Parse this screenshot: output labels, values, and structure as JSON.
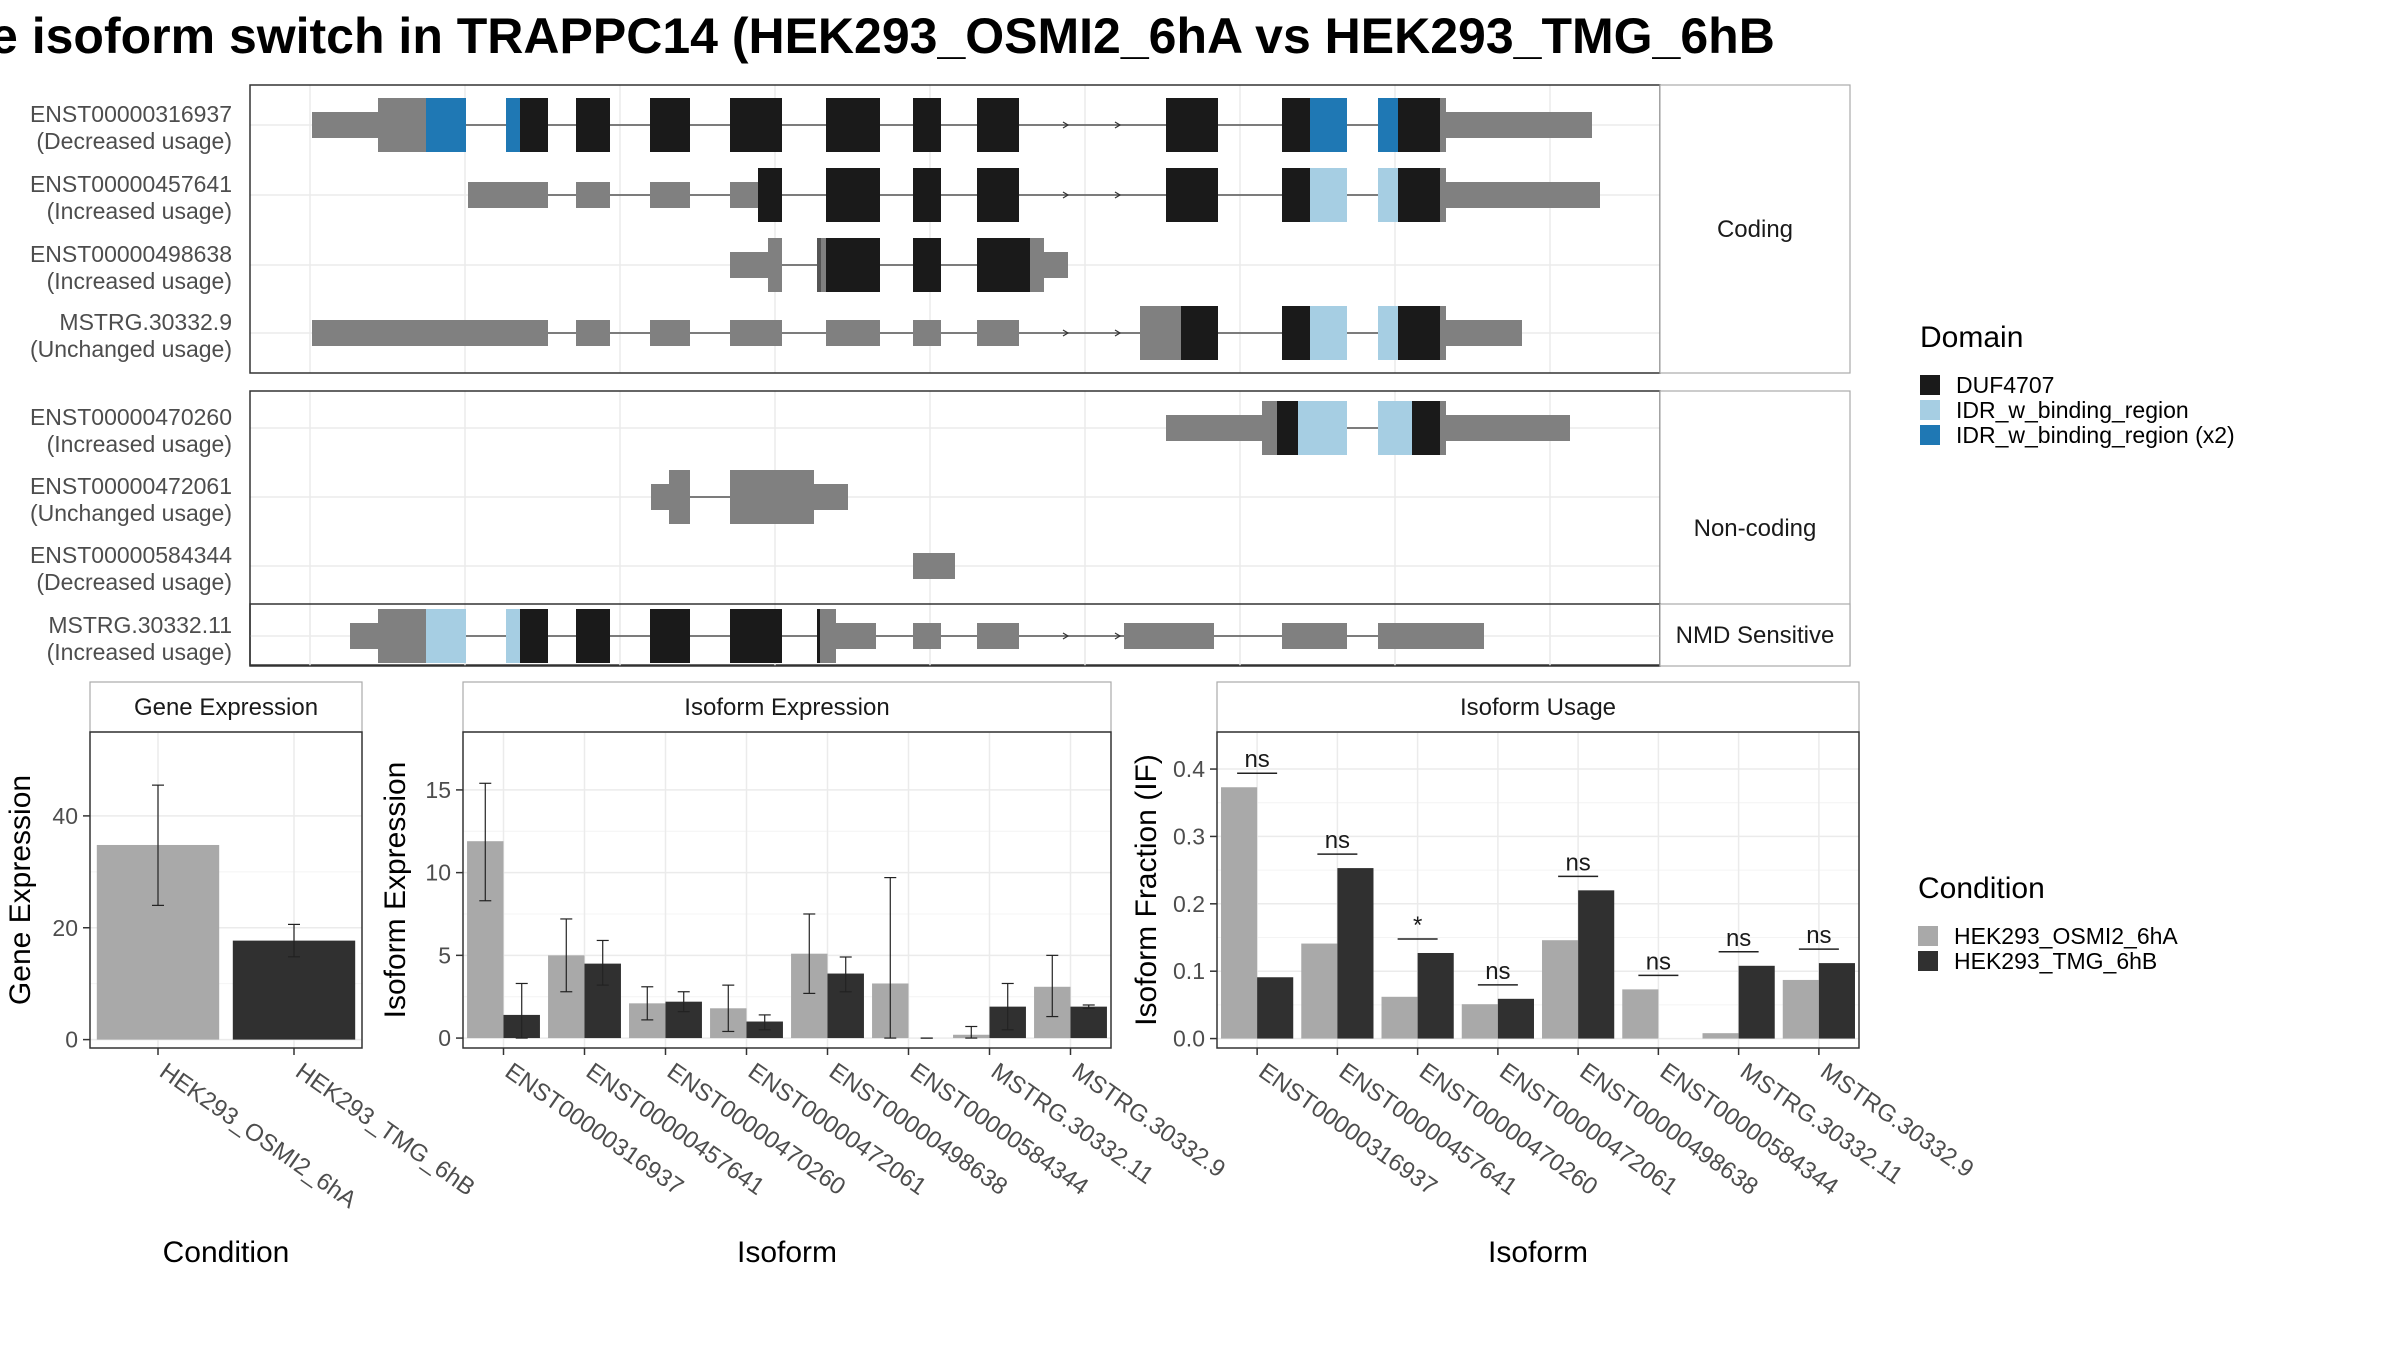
{
  "title": "e isoform switch in TRAPPC14 (HEK293_OSMI2_6hA vs HEK293_TMG_6hB",
  "colors": {
    "duf": "#1a1a1a",
    "idr": "#a6cee3",
    "idr2": "#1f78b4",
    "utr": "#808080",
    "cond_a": "#a9a9a9",
    "cond_b": "#303030",
    "panel_border": "#333333",
    "strip_border": "#aaaaaa",
    "grid": "#ebebeb"
  },
  "legend_domain": {
    "title": "Domain",
    "items": [
      {
        "label": "DUF4707",
        "color_key": "duf"
      },
      {
        "label": "IDR_w_binding_region",
        "color_key": "idr"
      },
      {
        "label": "IDR_w_binding_region (x2)",
        "color_key": "idr2"
      }
    ]
  },
  "legend_condition": {
    "title": "Condition",
    "items": [
      {
        "label": "HEK293_OSMI2_6hA",
        "color_key": "cond_a"
      },
      {
        "label": "HEK293_TMG_6hB",
        "color_key": "cond_b"
      }
    ]
  },
  "transcripts": {
    "groups": [
      {
        "strip": "Coding",
        "tracks": [
          {
            "id": "ENST00000316937",
            "usage": "(Decreased usage)"
          },
          {
            "id": "ENST00000457641",
            "usage": "(Increased usage)"
          },
          {
            "id": "ENST00000498638",
            "usage": "(Increased usage)"
          },
          {
            "id": "MSTRG.30332.9",
            "usage": "(Unchanged usage)"
          }
        ]
      },
      {
        "strip": "Non-coding",
        "tracks": [
          {
            "id": "ENST00000470260",
            "usage": "(Increased usage)"
          },
          {
            "id": "ENST00000472061",
            "usage": "(Unchanged usage)"
          },
          {
            "id": "ENST00000584344",
            "usage": "(Decreased usage)"
          }
        ]
      },
      {
        "strip": "NMD Sensitive",
        "tracks": [
          {
            "id": "MSTRG.30332.11",
            "usage": "(Increased usage)"
          }
        ]
      }
    ]
  },
  "chart_data": [
    {
      "type": "bar",
      "title": "Gene Expression",
      "xlabel": "Condition",
      "ylabel": "Gene Expression",
      "categories": [
        "HEK293_OSMI2_6hA",
        "HEK293_TMG_6hB"
      ],
      "values": [
        34.8,
        17.7
      ],
      "error_low": [
        24.0,
        14.8
      ],
      "error_high": [
        45.5,
        20.6
      ],
      "ylim": [
        -1.5,
        55
      ],
      "yticks": [
        0,
        20,
        40
      ]
    },
    {
      "type": "bar",
      "title": "Isoform Expression",
      "xlabel": "Isoform",
      "ylabel": "Isoform Expression",
      "categories": [
        "ENST00000316937",
        "ENST00000457641",
        "ENST00000470260",
        "ENST00000472061",
        "ENST00000498638",
        "ENST00000584344",
        "MSTRG.30332.11",
        "MSTRG.30332.9"
      ],
      "series": [
        {
          "name": "HEK293_OSMI2_6hA",
          "values": [
            11.9,
            5.0,
            2.1,
            1.8,
            5.1,
            3.3,
            0.2,
            3.1
          ],
          "error_low": [
            8.3,
            2.8,
            1.1,
            0.4,
            2.7,
            0.0,
            0.0,
            1.3
          ],
          "error_high": [
            15.4,
            7.2,
            3.1,
            3.2,
            7.5,
            9.7,
            0.7,
            5.0
          ]
        },
        {
          "name": "HEK293_TMG_6hB",
          "values": [
            1.4,
            4.5,
            2.2,
            1.0,
            3.9,
            0.0,
            1.9,
            1.9
          ],
          "error_low": [
            0.0,
            3.2,
            1.6,
            0.5,
            2.8,
            0.0,
            0.5,
            1.8
          ],
          "error_high": [
            3.3,
            5.9,
            2.8,
            1.4,
            4.9,
            0.0,
            3.3,
            2.0
          ]
        }
      ],
      "ylim": [
        -0.6,
        18.5
      ],
      "yticks": [
        0,
        5,
        10,
        15
      ]
    },
    {
      "type": "bar",
      "title": "Isoform Usage",
      "xlabel": "Isoform",
      "ylabel": "Isoform Fraction (IF)",
      "categories": [
        "ENST00000316937",
        "ENST00000457641",
        "ENST00000470260",
        "ENST00000472061",
        "ENST00000498638",
        "ENST00000584344",
        "MSTRG.30332.11",
        "MSTRG.30332.9"
      ],
      "series": [
        {
          "name": "HEK293_OSMI2_6hA",
          "values": [
            0.373,
            0.141,
            0.062,
            0.051,
            0.146,
            0.073,
            0.008,
            0.087
          ]
        },
        {
          "name": "HEK293_TMG_6hB",
          "values": [
            0.091,
            0.253,
            0.127,
            0.059,
            0.22,
            0.0,
            0.108,
            0.112
          ]
        }
      ],
      "significance": [
        "ns",
        "ns",
        "*",
        "ns",
        "ns",
        "ns",
        "ns",
        "ns"
      ],
      "ylim": [
        -0.014,
        0.455
      ],
      "yticks": [
        0.0,
        0.1,
        0.2,
        0.3,
        0.4
      ]
    }
  ]
}
